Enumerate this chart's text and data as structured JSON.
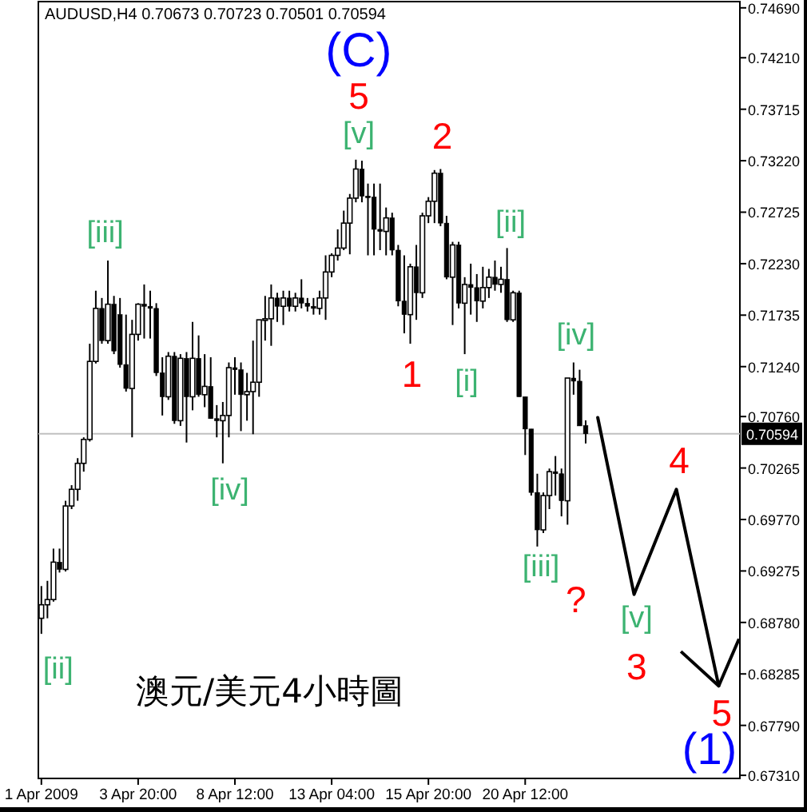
{
  "chart_data": {
    "type": "candlestick",
    "title": "AUDUSD,H4  0.70673 0.70723 0.70501 0.70594",
    "categories": [
      "1 Apr 2009",
      null,
      null,
      null,
      null,
      null,
      null,
      null,
      null,
      null,
      null,
      null,
      null,
      null,
      null,
      null,
      "3 Apr 20:00",
      null,
      null,
      null,
      null,
      null,
      null,
      null,
      null,
      null,
      null,
      null,
      null,
      null,
      null,
      null,
      "8 Apr 12:00",
      null,
      null,
      null,
      null,
      null,
      null,
      null,
      null,
      null,
      null,
      null,
      null,
      null,
      null,
      null,
      "13 Apr 04:00",
      null,
      null,
      null,
      null,
      null,
      null,
      null,
      null,
      null,
      null,
      null,
      null,
      null,
      null,
      null,
      "15 Apr 20:00",
      null,
      null,
      null,
      null,
      null,
      null,
      null,
      null,
      null,
      null,
      null,
      null,
      null,
      null,
      null,
      "20 Apr 12:00",
      null,
      null,
      null,
      null,
      null,
      null,
      null,
      null,
      null,
      null,
      null,
      null,
      null,
      null,
      null,
      null,
      null,
      null,
      null,
      null,
      null,
      null,
      null,
      null,
      null,
      null,
      null,
      null,
      null,
      null,
      null,
      null,
      null,
      null,
      null
    ],
    "ohlc": [
      [
        0.6882,
        0.6913,
        0.6867,
        0.6895
      ],
      [
        0.6895,
        0.6918,
        0.6882,
        0.69
      ],
      [
        0.69,
        0.6949,
        0.6898,
        0.6936
      ],
      [
        0.6936,
        0.6949,
        0.6926,
        0.6929
      ],
      [
        0.6929,
        0.6995,
        0.6927,
        0.699
      ],
      [
        0.699,
        0.701,
        0.6987,
        0.7006
      ],
      [
        0.7006,
        0.7036,
        0.6995,
        0.7031
      ],
      [
        0.7031,
        0.7056,
        0.7023,
        0.7054
      ],
      [
        0.7054,
        0.7146,
        0.7052,
        0.7129
      ],
      [
        0.7129,
        0.7197,
        0.7127,
        0.718
      ],
      [
        0.718,
        0.719,
        0.7146,
        0.7149
      ],
      [
        0.7149,
        0.7226,
        0.7146,
        0.7184
      ],
      [
        0.7184,
        0.7192,
        0.7136,
        0.7139
      ],
      [
        0.7174,
        0.719,
        0.7123,
        0.7126
      ],
      [
        0.7126,
        0.7174,
        0.71,
        0.7103
      ],
      [
        0.7103,
        0.7169,
        0.7056,
        0.7155
      ],
      [
        0.7155,
        0.7185,
        0.7149,
        0.7184
      ],
      [
        0.7184,
        0.7203,
        0.7151,
        0.7182
      ],
      [
        0.7182,
        0.7197,
        0.7151,
        0.718
      ],
      [
        0.718,
        0.7185,
        0.7115,
        0.7118
      ],
      [
        0.7118,
        0.7133,
        0.7077,
        0.7095
      ],
      [
        0.7095,
        0.7138,
        0.7092,
        0.7134
      ],
      [
        0.7134,
        0.7138,
        0.7069,
        0.7072
      ],
      [
        0.7072,
        0.7136,
        0.7067,
        0.7132
      ],
      [
        0.7132,
        0.7138,
        0.7051,
        0.7095
      ],
      [
        0.7095,
        0.7167,
        0.7082,
        0.7132
      ],
      [
        0.7132,
        0.7154,
        0.7095,
        0.7097
      ],
      [
        0.7097,
        0.7136,
        0.7085,
        0.7105
      ],
      [
        0.7105,
        0.7133,
        0.7074,
        0.7074
      ],
      [
        0.7074,
        0.7087,
        0.7056,
        0.7072
      ],
      [
        0.7072,
        0.709,
        0.7031,
        0.7077
      ],
      [
        0.7077,
        0.7128,
        0.7056,
        0.7123
      ],
      [
        0.7123,
        0.7133,
        0.7097,
        0.7121
      ],
      [
        0.7121,
        0.7128,
        0.7062,
        0.7097
      ],
      [
        0.7097,
        0.7118,
        0.7072,
        0.71
      ],
      [
        0.71,
        0.7149,
        0.7059,
        0.7109
      ],
      [
        0.7109,
        0.7169,
        0.7095,
        0.7169
      ],
      [
        0.7169,
        0.7192,
        0.7149,
        0.717
      ],
      [
        0.717,
        0.7203,
        0.7144,
        0.719
      ],
      [
        0.719,
        0.7195,
        0.7167,
        0.7182
      ],
      [
        0.7182,
        0.7197,
        0.7164,
        0.719
      ],
      [
        0.719,
        0.7197,
        0.7177,
        0.7182
      ],
      [
        0.7182,
        0.7195,
        0.7177,
        0.719
      ],
      [
        0.719,
        0.7208,
        0.718,
        0.7185
      ],
      [
        0.7185,
        0.719,
        0.7177,
        0.7182
      ],
      [
        0.7182,
        0.719,
        0.7174,
        0.718
      ],
      [
        0.718,
        0.7197,
        0.7174,
        0.719
      ],
      [
        0.719,
        0.7231,
        0.7169,
        0.7215
      ],
      [
        0.7215,
        0.7233,
        0.721,
        0.7231
      ],
      [
        0.7231,
        0.7256,
        0.7226,
        0.7238
      ],
      [
        0.7238,
        0.7274,
        0.7236,
        0.7262
      ],
      [
        0.7262,
        0.729,
        0.7232,
        0.7286
      ],
      [
        0.7286,
        0.7323,
        0.7282,
        0.7314
      ],
      [
        0.7314,
        0.7322,
        0.7282,
        0.7288
      ],
      [
        0.7288,
        0.73,
        0.7231,
        0.7287
      ],
      [
        0.7287,
        0.73,
        0.7231,
        0.7256
      ],
      [
        0.7256,
        0.73,
        0.7236,
        0.7254
      ],
      [
        0.7254,
        0.7277,
        0.7231,
        0.7267
      ],
      [
        0.7267,
        0.7272,
        0.7231,
        0.7236
      ],
      [
        0.7236,
        0.7241,
        0.7182,
        0.7187
      ],
      [
        0.7187,
        0.7231,
        0.7156,
        0.7174
      ],
      [
        0.7174,
        0.7223,
        0.7146,
        0.722
      ],
      [
        0.722,
        0.7241,
        0.7169,
        0.7195
      ],
      [
        0.7195,
        0.7272,
        0.719,
        0.7269
      ],
      [
        0.7269,
        0.7287,
        0.7262,
        0.7283
      ],
      [
        0.7283,
        0.7313,
        0.7262,
        0.731
      ],
      [
        0.731,
        0.7314,
        0.7259,
        0.7262
      ],
      [
        0.7262,
        0.7269,
        0.7208,
        0.721
      ],
      [
        0.721,
        0.7244,
        0.7164,
        0.7241
      ],
      [
        0.7241,
        0.7244,
        0.718,
        0.7185
      ],
      [
        0.7185,
        0.721,
        0.7136,
        0.7203
      ],
      [
        0.7203,
        0.7223,
        0.7174,
        0.72
      ],
      [
        0.72,
        0.7213,
        0.7167,
        0.7187
      ],
      [
        0.7187,
        0.722,
        0.718,
        0.72
      ],
      [
        0.72,
        0.7218,
        0.719,
        0.721
      ],
      [
        0.721,
        0.7226,
        0.7197,
        0.7203
      ],
      [
        0.7203,
        0.722,
        0.7195,
        0.7208
      ],
      [
        0.7208,
        0.7238,
        0.7167,
        0.7169
      ],
      [
        0.7169,
        0.7197,
        0.7167,
        0.7195
      ],
      [
        0.7195,
        0.7197,
        0.7095,
        0.7095
      ],
      [
        0.7095,
        0.7095,
        0.7039,
        0.7064
      ],
      [
        0.7064,
        0.7064,
        0.7,
        0.7003
      ],
      [
        0.7003,
        0.7021,
        0.6951,
        0.6967
      ],
      [
        0.6967,
        0.7003,
        0.6964,
        0.7
      ],
      [
        0.7,
        0.7026,
        0.6987,
        0.7023
      ],
      [
        0.7023,
        0.7038,
        0.7,
        0.7021
      ],
      [
        0.7021,
        0.7026,
        0.698,
        0.6995
      ],
      [
        0.6995,
        0.7113,
        0.6972,
        0.7113
      ],
      [
        0.7113,
        0.7128,
        0.7097,
        0.711
      ],
      [
        0.711,
        0.7121,
        0.7067,
        0.7067
      ],
      [
        0.70673,
        0.70723,
        0.70501,
        0.70594
      ],
      null,
      null,
      null,
      null,
      null,
      null,
      null,
      null,
      null,
      null,
      null,
      null,
      null,
      null,
      null,
      null,
      null,
      null,
      null,
      null,
      null,
      null,
      null,
      null,
      null
    ],
    "series": [
      {
        "type": "line",
        "color": "#000000",
        "values": [
          null,
          null,
          null,
          null,
          null,
          null,
          null,
          null,
          null,
          null,
          null,
          null,
          null,
          null,
          null,
          null,
          null,
          null,
          null,
          null,
          null,
          null,
          null,
          null,
          null,
          null,
          null,
          null,
          null,
          null,
          null,
          null,
          null,
          null,
          null,
          null,
          null,
          null,
          null,
          null,
          null,
          null,
          null,
          null,
          null,
          null,
          null,
          null,
          null,
          null,
          null,
          null,
          null,
          null,
          null,
          null,
          null,
          null,
          null,
          null,
          null,
          null,
          null,
          null,
          null,
          null,
          null,
          null,
          null,
          null,
          null,
          null,
          null,
          null,
          null,
          null,
          null,
          null,
          null,
          null,
          null,
          null,
          null,
          null,
          null,
          null,
          null,
          null,
          null,
          null,
          null,
          null,
          0.7075,
          null,
          null,
          null,
          null,
          null,
          0.6905,
          null,
          null,
          null,
          null,
          null,
          null,
          0.7006,
          null,
          null,
          null,
          null,
          null,
          null,
          0.6817,
          null,
          null,
          null
        ]
      }
    ],
    "ylim": [
      0.6728,
      0.7475
    ],
    "yticks": [
      {
        "value": 0.7469,
        "label": "0.74690"
      },
      {
        "value": 0.7421,
        "label": "0.74210"
      },
      {
        "value": 0.73715,
        "label": "0.73715"
      },
      {
        "value": 0.7322,
        "label": "0.73220"
      },
      {
        "value": 0.72725,
        "label": "0.72725"
      },
      {
        "value": 0.7223,
        "label": "0.72230"
      },
      {
        "value": 0.71735,
        "label": "0.71735"
      },
      {
        "value": 0.7124,
        "label": "0.71240"
      },
      {
        "value": 0.7076,
        "label": "0.70760"
      },
      {
        "value": 0.70265,
        "label": "0.70265"
      },
      {
        "value": 0.6977,
        "label": "0.69770"
      },
      {
        "value": 0.69275,
        "label": "0.69275"
      },
      {
        "value": 0.6878,
        "label": "0.68780"
      },
      {
        "value": 0.68285,
        "label": "0.68285"
      },
      {
        "value": 0.6779,
        "label": "0.67790"
      },
      {
        "value": 0.6731,
        "label": "0.67310"
      }
    ],
    "ref_lines": [
      {
        "axis": "y",
        "value": 0.70594,
        "label": "0.70594",
        "color": "#c0c0c0"
      }
    ],
    "annotations": [
      "澳元/美元4小時圖",
      "(C)",
      {
        "text": "5",
        "y": 0.7323
      },
      {
        "text": "[v]",
        "y": 0.7323
      },
      {
        "text": "2",
        "y": 0.7314
      },
      "[iii]",
      {
        "text": "[ii]",
        "y": 0.7241
      },
      {
        "text": "1",
        "y": 0.7146
      },
      "[i]",
      "[iv]",
      {
        "text": "[iv]",
        "y": 0.7056
      },
      {
        "text": "[iii]",
        "y": 0.6951
      },
      "?",
      "[v]",
      "3",
      "4",
      "5",
      "(1)",
      "[ii]"
    ]
  }
}
